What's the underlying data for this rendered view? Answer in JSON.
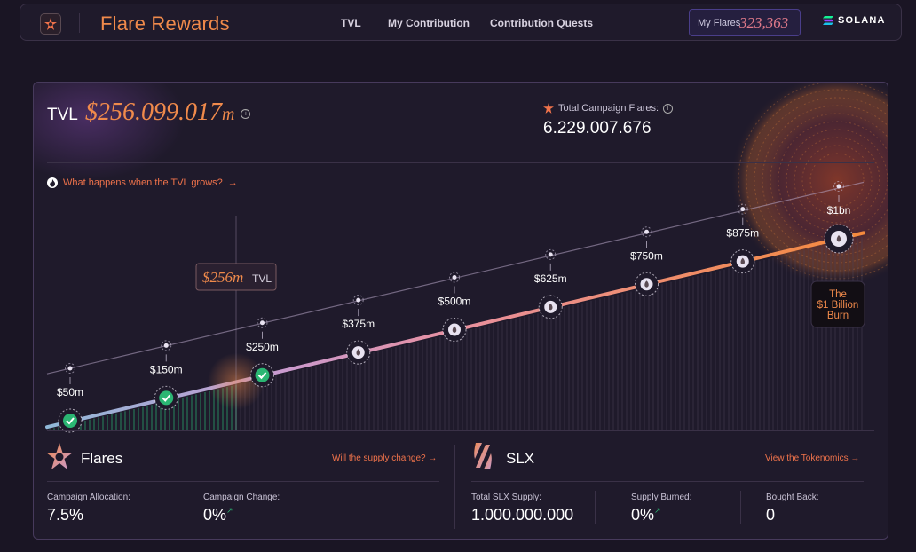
{
  "header": {
    "title": "Flare Rewards",
    "nav": [
      "TVL",
      "My Contribution",
      "Contribution Quests"
    ],
    "my_flares_label": "My Flares",
    "my_flares_value": "323,363",
    "wallet_label": "SOLANA"
  },
  "tvl": {
    "label": "TVL",
    "value": "$256.099.017",
    "unit": "m",
    "campaign_label": "Total Campaign Flares:",
    "campaign_value": "6.229.007.676",
    "link_text": "What happens when the TVL grows?"
  },
  "milestones": {
    "labels": [
      "$50m",
      "$150m",
      "$250m",
      "$375m",
      "$500m",
      "$625m",
      "$750m",
      "$875m",
      "$1bn"
    ],
    "completed": [
      true,
      true,
      true,
      false,
      false,
      false,
      false,
      false,
      false
    ],
    "current_value": "$256m",
    "current_unit": "TVL",
    "burn_label": [
      "The",
      "$1 Billion",
      "Burn"
    ]
  },
  "flares": {
    "title": "Flares",
    "link": "Will the supply change?",
    "allocation_label": "Campaign Allocation:",
    "allocation_value": "7.5%",
    "change_label": "Campaign Change:",
    "change_value": "0%"
  },
  "slx": {
    "title": "SLX",
    "link": "View the Tokenomics",
    "supply_label": "Total SLX Supply:",
    "supply_value": "1.000.000.000",
    "burned_label": "Supply Burned:",
    "burned_value": "0%",
    "bought_label": "Bought Back:",
    "bought_value": "0"
  },
  "colors": {
    "accent": "#f08a4b",
    "link": "#f0734b",
    "check": "#2bb673"
  }
}
